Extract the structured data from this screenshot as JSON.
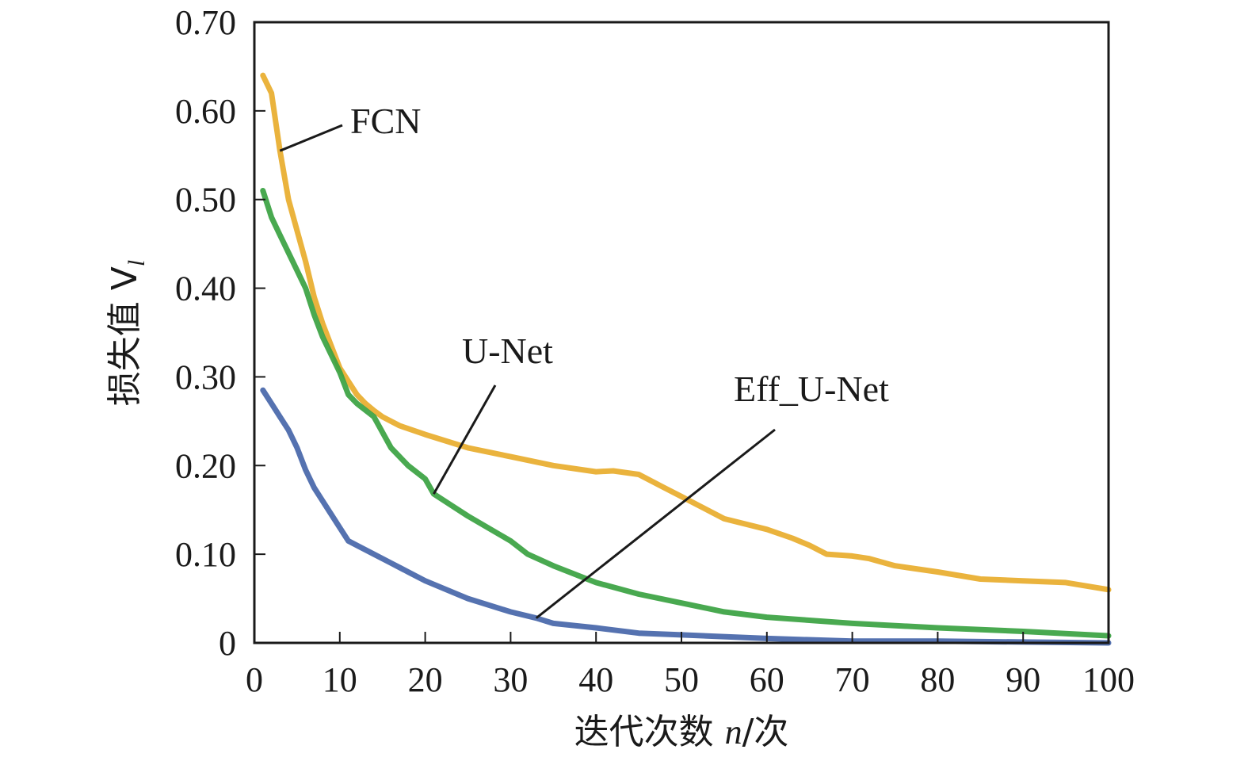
{
  "chart_data": {
    "type": "line",
    "xlabel": "迭代次数 n/次",
    "xlabel_parts": {
      "prefix": "迭代次数 ",
      "italic": "n",
      "suffix": "/次"
    },
    "ylabel": "损失值 Vl",
    "ylabel_parts": {
      "prefix": "损失值 V",
      "subscript": "l"
    },
    "xlim": [
      0,
      100
    ],
    "ylim": [
      0,
      0.7
    ],
    "x_ticks": [
      0,
      10,
      20,
      30,
      40,
      50,
      60,
      70,
      80,
      90,
      100
    ],
    "x_tick_labels": [
      "0",
      "10",
      "20",
      "30",
      "40",
      "50",
      "60",
      "70",
      "80",
      "90",
      "100"
    ],
    "y_ticks": [
      0,
      0.1,
      0.2,
      0.3,
      0.4,
      0.5,
      0.6,
      0.7
    ],
    "y_tick_labels": [
      "0",
      "0.10",
      "0.20",
      "0.30",
      "0.40",
      "0.50",
      "0.60",
      "0.70"
    ],
    "grid": false,
    "legend": "none",
    "series": [
      {
        "name": "FCN",
        "color": "#e8ac2c",
        "x": [
          1,
          2,
          3,
          4,
          5,
          6,
          7,
          8,
          9,
          10,
          11,
          12,
          13,
          14,
          15,
          17,
          20,
          25,
          30,
          35,
          40,
          42,
          45,
          48,
          50,
          55,
          60,
          63,
          65,
          67,
          70,
          72,
          75,
          80,
          85,
          90,
          95,
          100
        ],
        "y": [
          0.64,
          0.62,
          0.555,
          0.5,
          0.465,
          0.43,
          0.39,
          0.36,
          0.335,
          0.31,
          0.295,
          0.28,
          0.27,
          0.262,
          0.255,
          0.245,
          0.235,
          0.22,
          0.21,
          0.2,
          0.193,
          0.194,
          0.19,
          0.175,
          0.165,
          0.14,
          0.128,
          0.118,
          0.11,
          0.1,
          0.098,
          0.095,
          0.087,
          0.08,
          0.072,
          0.07,
          0.068,
          0.06
        ]
      },
      {
        "name": "U-Net",
        "color": "#3aa241",
        "x": [
          1,
          2,
          3,
          4,
          5,
          6,
          7,
          8,
          9,
          10,
          11,
          12,
          14,
          16,
          18,
          20,
          21,
          25,
          30,
          32,
          35,
          40,
          45,
          50,
          55,
          60,
          70,
          80,
          90,
          100
        ],
        "y": [
          0.51,
          0.48,
          0.46,
          0.44,
          0.42,
          0.4,
          0.37,
          0.345,
          0.325,
          0.305,
          0.28,
          0.27,
          0.255,
          0.22,
          0.2,
          0.185,
          0.168,
          0.143,
          0.115,
          0.1,
          0.087,
          0.068,
          0.055,
          0.045,
          0.035,
          0.029,
          0.022,
          0.017,
          0.013,
          0.008
        ]
      },
      {
        "name": "Eff_U-Net",
        "color": "#4766a9",
        "x": [
          1,
          2,
          3,
          4,
          5,
          6,
          7,
          8,
          9,
          10,
          11,
          12,
          14,
          16,
          18,
          20,
          25,
          30,
          33,
          35,
          40,
          45,
          50,
          60,
          70,
          80,
          90,
          100
        ],
        "y": [
          0.285,
          0.27,
          0.255,
          0.24,
          0.22,
          0.195,
          0.175,
          0.16,
          0.145,
          0.13,
          0.115,
          0.11,
          0.1,
          0.09,
          0.08,
          0.07,
          0.05,
          0.035,
          0.028,
          0.022,
          0.017,
          0.011,
          0.009,
          0.005,
          0.002,
          0.002,
          0.001,
          0.0
        ]
      }
    ],
    "annotations": [
      {
        "text": "FCN",
        "series": "FCN"
      },
      {
        "text": "U-Net",
        "series": "U-Net"
      },
      {
        "text": "Eff_U-Net",
        "series": "Eff_U-Net"
      }
    ]
  }
}
